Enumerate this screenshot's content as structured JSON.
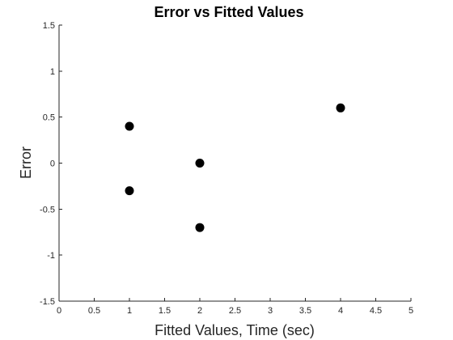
{
  "chart_data": {
    "type": "scatter",
    "title": "Error vs Fitted Values",
    "xlabel": "Fitted Values, Time (sec)",
    "ylabel": "Error",
    "xlim": [
      0,
      5
    ],
    "ylim": [
      -1.5,
      1.5
    ],
    "xticks": [
      "0",
      "0.5",
      "1",
      "1.5",
      "2",
      "2.5",
      "3",
      "3.5",
      "4",
      "4.5",
      "5"
    ],
    "yticks": [
      "-1.5",
      "-1",
      "-0.5",
      "0",
      "0.5",
      "1",
      "1.5"
    ],
    "grid": false,
    "points": [
      {
        "x": 1,
        "y": 0.4
      },
      {
        "x": 1,
        "y": -0.3
      },
      {
        "x": 2,
        "y": 0
      },
      {
        "x": 2,
        "y": -0.7
      },
      {
        "x": 4,
        "y": 0.6
      }
    ],
    "marker_color": "#000000"
  }
}
